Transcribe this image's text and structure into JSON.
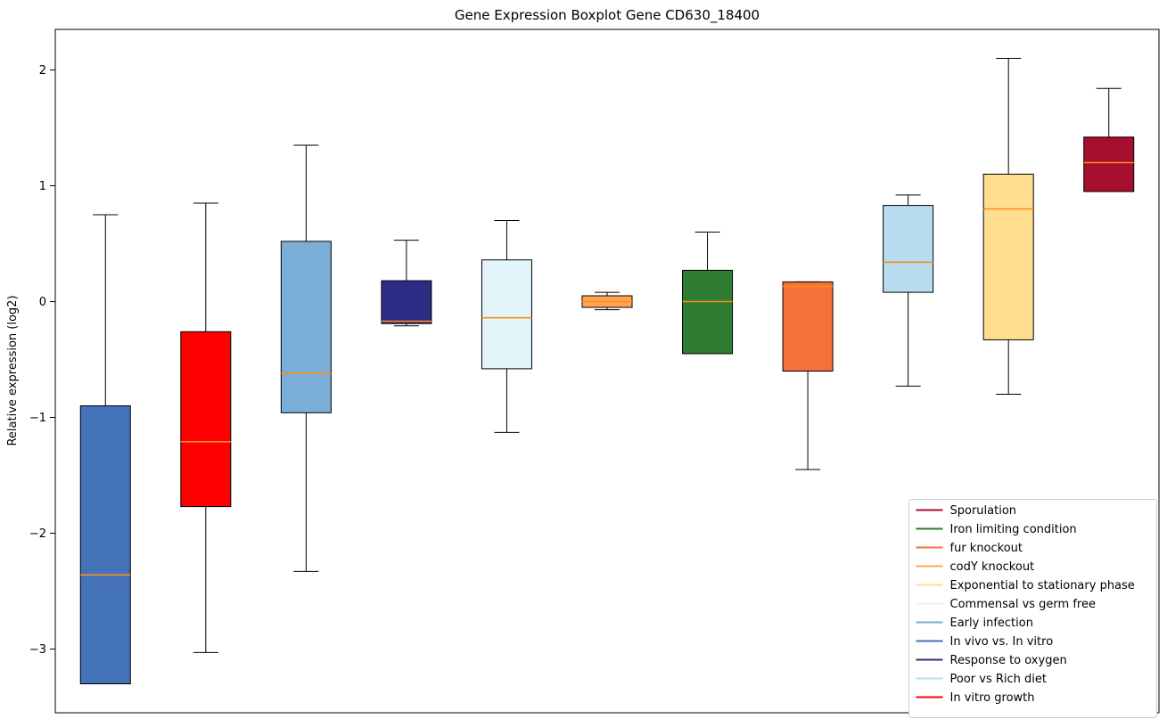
{
  "chart_data": {
    "type": "boxplot",
    "title": "Gene Expression Boxplot Gene CD630_18400",
    "ylabel": "Relative expression (log2)",
    "ylim": [
      -3.55,
      2.35
    ],
    "yticks": [
      2,
      1,
      0,
      -1,
      -2,
      -3
    ],
    "grid": false,
    "legend_position": "lower right",
    "median_color": "#ff8c1a",
    "box_edge_color": "#000000",
    "whisker_color": "#000000",
    "groups": [
      {
        "label": "In vivo vs. In vitro",
        "color": "#4472b8",
        "whislo": -3.3,
        "q1": -3.3,
        "med": -2.36,
        "q3": -0.9,
        "whishi": 0.75
      },
      {
        "label": "In vitro growth",
        "color": "#ff0000",
        "whislo": -3.03,
        "q1": -1.77,
        "med": -1.21,
        "q3": -0.26,
        "whishi": 0.85
      },
      {
        "label": "Early infection",
        "color": "#7aaed6",
        "whislo": -2.33,
        "q1": -0.96,
        "med": -0.62,
        "q3": 0.52,
        "whishi": 1.35
      },
      {
        "label": "Response to oxygen",
        "color": "#2d2d86",
        "whislo": -0.21,
        "q1": -0.19,
        "med": -0.17,
        "q3": 0.18,
        "whishi": 0.53
      },
      {
        "label": "Commensal vs germ free",
        "color": "#e3f3fa",
        "whislo": -1.13,
        "q1": -0.58,
        "med": -0.14,
        "q3": 0.36,
        "whishi": 0.7
      },
      {
        "label": "codY knockout",
        "color": "#ffa552",
        "whislo": -0.07,
        "q1": -0.05,
        "med": 0.0,
        "q3": 0.05,
        "whishi": 0.08
      },
      {
        "label": "Iron limiting condition",
        "color": "#2e7d32",
        "whislo": -0.45,
        "q1": -0.45,
        "med": 0.0,
        "q3": 0.27,
        "whishi": 0.6
      },
      {
        "label": "fur knockout",
        "color": "#f4713c",
        "whislo": -1.45,
        "q1": -0.6,
        "med": 0.13,
        "q3": 0.17,
        "whishi": 0.17
      },
      {
        "label": "Poor vs Rich diet",
        "color": "#b8ddee",
        "whislo": -0.73,
        "q1": 0.08,
        "med": 0.34,
        "q3": 0.83,
        "whishi": 0.92
      },
      {
        "label": "Exponential to stationary phase",
        "color": "#ffde91",
        "whislo": -0.8,
        "q1": -0.33,
        "med": 0.8,
        "q3": 1.1,
        "whishi": 2.1
      },
      {
        "label": "Sporulation",
        "color": "#a50f2d",
        "whislo": 0.95,
        "q1": 0.95,
        "med": 1.2,
        "q3": 1.42,
        "whishi": 1.84
      }
    ],
    "legend": [
      {
        "label": "Sporulation",
        "color": "#a50f2d"
      },
      {
        "label": "Iron limiting condition",
        "color": "#2e7d32"
      },
      {
        "label": "fur knockout",
        "color": "#f4713c"
      },
      {
        "label": "codY knockout",
        "color": "#ffa552"
      },
      {
        "label": "Exponential to stationary phase",
        "color": "#ffde91"
      },
      {
        "label": "Commensal vs germ free",
        "color": "#e3f3fa"
      },
      {
        "label": "Early infection",
        "color": "#7aaed6"
      },
      {
        "label": "In vivo vs. In vitro",
        "color": "#4472b8"
      },
      {
        "label": "Response to oxygen",
        "color": "#2d2d86"
      },
      {
        "label": "Poor vs Rich diet",
        "color": "#b8ddee"
      },
      {
        "label": "In vitro growth",
        "color": "#ff0000"
      }
    ]
  }
}
